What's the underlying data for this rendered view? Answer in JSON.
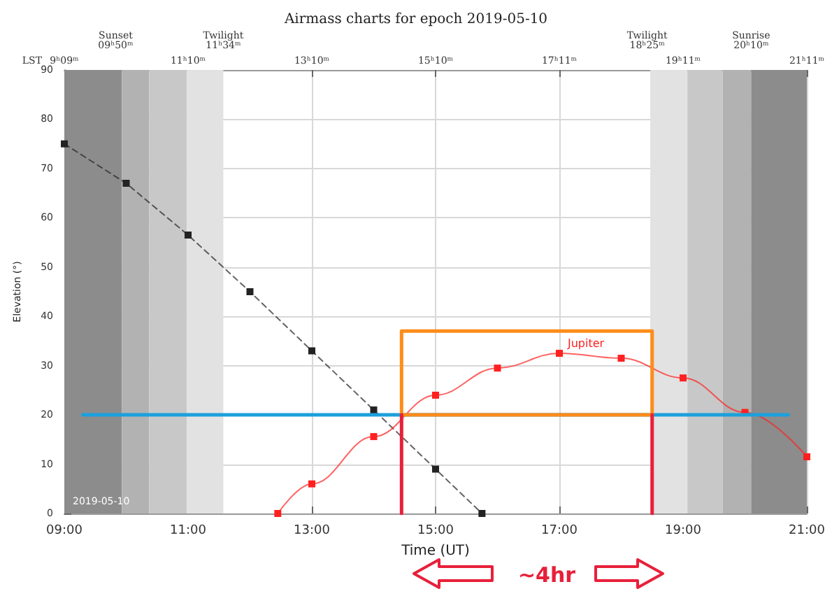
{
  "chart_data": {
    "type": "line",
    "title": "Airmass charts for epoch 2019-05-10",
    "xlabel": "Time (UT)",
    "ylabel": "Elevation (°)",
    "x2label": "LST",
    "xlim": [
      9,
      21
    ],
    "xticks": [
      {
        "value": 9,
        "label": "09:00"
      },
      {
        "value": 11,
        "label": "11:00"
      },
      {
        "value": 13,
        "label": "13:00"
      },
      {
        "value": 15,
        "label": "15:00"
      },
      {
        "value": 17,
        "label": "17:00"
      },
      {
        "value": 19,
        "label": "19:00"
      },
      {
        "value": 21,
        "label": "21:00"
      }
    ],
    "ylim": [
      0,
      90
    ],
    "yticks": [
      0,
      10,
      20,
      30,
      40,
      50,
      60,
      70,
      80,
      90
    ],
    "grid": true,
    "marker": "square",
    "series": [
      {
        "color": "#222222",
        "line_style": "dashed",
        "x": [
          9,
          10,
          11,
          12,
          13,
          14,
          15,
          15.75
        ],
        "values": [
          75,
          67,
          56.5,
          45,
          33,
          21,
          9,
          0
        ]
      },
      {
        "name": "Jupiter",
        "color": "#ff2020",
        "x": [
          12.45,
          13,
          14,
          15,
          16,
          17,
          18,
          19,
          20,
          21
        ],
        "values": [
          0,
          6,
          15.6,
          24,
          29.5,
          32.5,
          31.5,
          27.5,
          20.5,
          11.5
        ]
      },
      {
        "color": "#1ca0dc",
        "marker": "none",
        "x": [
          9.3,
          20.7
        ],
        "values": [
          20,
          20
        ]
      },
      {
        "color": "#ff8c1a",
        "marker": "none",
        "x": [
          14.45,
          14.45,
          18.5,
          18.5
        ],
        "values": [
          20,
          37,
          37,
          20
        ]
      },
      {
        "color": "#ff8c1a",
        "marker": "none",
        "x": [
          14.45,
          18.5
        ],
        "values": [
          20,
          20
        ]
      },
      {
        "color": "#e8203a",
        "marker": "none",
        "x": [
          14.45,
          14.45
        ],
        "values": [
          0,
          20
        ]
      },
      {
        "color": "#e8203a",
        "marker": "none",
        "x": [
          18.5,
          18.5
        ],
        "values": [
          0,
          20
        ]
      }
    ],
    "bands": [
      {
        "axis": "x",
        "from": 9,
        "to": 9.93,
        "color": "#8c8c8c"
      },
      {
        "axis": "x",
        "from": 9.93,
        "to": 10.37,
        "color": "#b2b2b2"
      },
      {
        "axis": "x",
        "from": 10.37,
        "to": 10.98,
        "color": "#c8c8c8"
      },
      {
        "axis": "x",
        "from": 10.98,
        "to": 11.57,
        "color": "#e2e2e2"
      },
      {
        "axis": "x",
        "from": 18.47,
        "to": 19.07,
        "color": "#e2e2e2"
      },
      {
        "axis": "x",
        "from": 19.07,
        "to": 19.64,
        "color": "#c8c8c8"
      },
      {
        "axis": "x",
        "from": 19.64,
        "to": 20.1,
        "color": "#b2b2b2"
      },
      {
        "axis": "x",
        "from": 20.1,
        "to": 21,
        "color": "#8c8c8c"
      }
    ],
    "annotations": [
      "2019-05-10",
      "~4hr",
      "9ʰ09ᵐ",
      "11ʰ10ᵐ",
      "13ʰ10ᵐ",
      "15ʰ10ᵐ",
      "17ʰ11ᵐ",
      "19ʰ11ᵐ",
      "21ʰ11ᵐ",
      {
        "text": "Sunset 09ʰ50ᵐ",
        "x": 9.83,
        "y": 90
      },
      {
        "text": "Twilight 11ʰ34ᵐ",
        "x": 11.57,
        "y": 90
      },
      {
        "text": "Twilight 18ʰ25ᵐ",
        "x": 18.42,
        "y": 90
      },
      {
        "text": "Sunrise 20ʰ10ᵐ",
        "x": 20.1,
        "y": 90
      }
    ]
  }
}
